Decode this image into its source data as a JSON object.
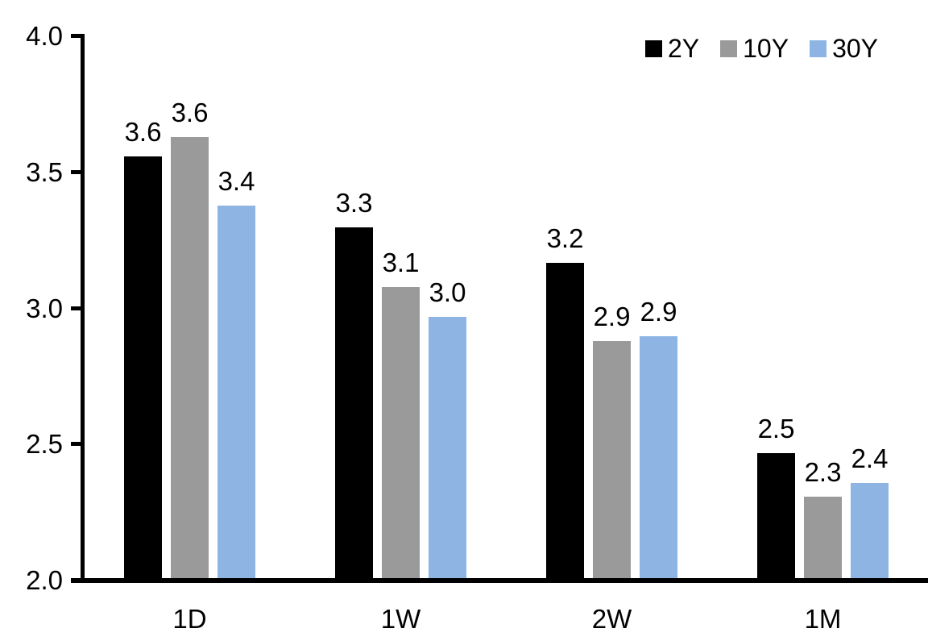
{
  "chart_data": {
    "type": "bar",
    "title": "",
    "xlabel": "",
    "ylabel": "",
    "categories": [
      "1D",
      "1W",
      "2W",
      "1M"
    ],
    "series": [
      {
        "name": "2Y",
        "color": "#000000",
        "values": [
          3.55,
          3.29,
          3.16,
          2.46
        ],
        "labels": [
          "3.6",
          "3.3",
          "3.2",
          "2.5"
        ]
      },
      {
        "name": "10Y",
        "color": "#9A9A9A",
        "values": [
          3.62,
          3.07,
          2.87,
          2.3
        ],
        "labels": [
          "3.6",
          "3.1",
          "2.9",
          "2.3"
        ]
      },
      {
        "name": "30Y",
        "color": "#8DB4E2",
        "values": [
          3.37,
          2.96,
          2.89,
          2.35
        ],
        "labels": [
          "3.4",
          "3.0",
          "2.9",
          "2.4"
        ]
      }
    ],
    "y_axis": {
      "min": 2.0,
      "max": 4.0,
      "tick_values": [
        4.0,
        3.5,
        3.0,
        2.5,
        2.0
      ],
      "tick_labels": [
        "4.0",
        "3.5",
        "3.0",
        "2.5",
        "2.0"
      ]
    },
    "legend": {
      "position": "top-right",
      "entries": [
        "2Y",
        "10Y",
        "30Y"
      ]
    },
    "grid": false,
    "axis_color": "#000000",
    "background": "#FFFFFF"
  }
}
